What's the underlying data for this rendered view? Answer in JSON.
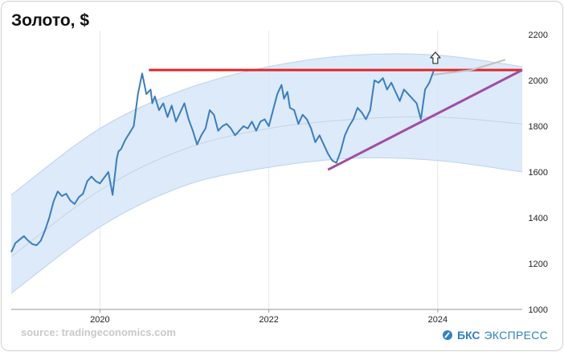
{
  "chart_data": {
    "type": "line",
    "title": "Золото, $",
    "xlabel": "",
    "ylabel": "",
    "xlim": [
      2018.95,
      2025.0
    ],
    "ylim": [
      1000,
      2200
    ],
    "yticks": [
      1000,
      1200,
      1400,
      1600,
      1800,
      2000,
      2200
    ],
    "xticks": [
      2020,
      2022,
      2024
    ],
    "ytick_labels": [
      "1000",
      "1200",
      "1400",
      "1600",
      "1800",
      "2000",
      "2200"
    ],
    "xtick_labels": [
      "2020",
      "2022",
      "2024"
    ],
    "grid": "vertical",
    "colors": {
      "price": "#3b7dbf",
      "channel_fill": "#d6e6f8",
      "resistance": "#e0262a",
      "support": "#a04ca6",
      "forecast": "#bfbfbf",
      "trend_center": "#c6d3e2"
    },
    "series": [
      {
        "name": "",
        "x": [
          2018.95,
          2019.0,
          2019.05,
          2019.1,
          2019.15,
          2019.2,
          2019.25,
          2019.3,
          2019.35,
          2019.4,
          2019.45,
          2019.5,
          2019.55,
          2019.6,
          2019.65,
          2019.7,
          2019.75,
          2019.8,
          2019.85,
          2019.9,
          2019.95,
          2020.0,
          2020.05,
          2020.1,
          2020.15,
          2020.2,
          2020.22,
          2020.25,
          2020.3,
          2020.35,
          2020.4,
          2020.45,
          2020.5,
          2020.55,
          2020.6,
          2020.62,
          2020.65,
          2020.7,
          2020.75,
          2020.8,
          2020.85,
          2020.9,
          2020.95,
          2021.0,
          2021.05,
          2021.1,
          2021.15,
          2021.2,
          2021.25,
          2021.3,
          2021.35,
          2021.4,
          2021.45,
          2021.5,
          2021.55,
          2021.6,
          2021.65,
          2021.7,
          2021.75,
          2021.8,
          2021.85,
          2021.9,
          2021.95,
          2022.0,
          2022.05,
          2022.1,
          2022.15,
          2022.18,
          2022.22,
          2022.25,
          2022.3,
          2022.35,
          2022.4,
          2022.45,
          2022.5,
          2022.55,
          2022.6,
          2022.65,
          2022.7,
          2022.75,
          2022.8,
          2022.85,
          2022.9,
          2022.95,
          2023.0,
          2023.05,
          2023.1,
          2023.15,
          2023.2,
          2023.25,
          2023.3,
          2023.35,
          2023.4,
          2023.45,
          2023.5,
          2023.55,
          2023.6,
          2023.65,
          2023.7,
          2023.75,
          2023.8,
          2023.85,
          2023.9,
          2023.95
        ],
        "y": [
          1250,
          1290,
          1305,
          1320,
          1300,
          1285,
          1280,
          1300,
          1345,
          1400,
          1470,
          1515,
          1495,
          1505,
          1475,
          1460,
          1490,
          1505,
          1560,
          1580,
          1560,
          1550,
          1575,
          1600,
          1500,
          1660,
          1690,
          1700,
          1740,
          1770,
          1800,
          1940,
          2030,
          1940,
          1960,
          1900,
          1930,
          1870,
          1900,
          1840,
          1890,
          1820,
          1860,
          1900,
          1830,
          1780,
          1720,
          1760,
          1790,
          1870,
          1850,
          1780,
          1800,
          1810,
          1790,
          1760,
          1780,
          1800,
          1790,
          1820,
          1780,
          1820,
          1830,
          1800,
          1870,
          1940,
          1980,
          1920,
          1950,
          1880,
          1870,
          1810,
          1850,
          1830,
          1790,
          1730,
          1760,
          1720,
          1680,
          1650,
          1640,
          1690,
          1760,
          1800,
          1830,
          1880,
          1860,
          1830,
          1870,
          2000,
          1990,
          2010,
          1960,
          1990,
          1950,
          1910,
          1960,
          1940,
          1920,
          1900,
          1830,
          1960,
          1990,
          2040
        ]
      }
    ],
    "channel": {
      "center": [
        [
          2018.95,
          1230
        ],
        [
          2020.0,
          1520
        ],
        [
          2021.0,
          1700
        ],
        [
          2022.0,
          1790
        ],
        [
          2023.0,
          1830
        ],
        [
          2024.0,
          1840
        ],
        [
          2025.0,
          1810
        ]
      ],
      "upper": [
        [
          2018.95,
          1500
        ],
        [
          2020.0,
          1790
        ],
        [
          2021.0,
          1960
        ],
        [
          2022.0,
          2060
        ],
        [
          2023.0,
          2110
        ],
        [
          2024.0,
          2110
        ],
        [
          2025.0,
          2060
        ]
      ],
      "lower": [
        [
          2018.95,
          1070
        ],
        [
          2020.0,
          1360
        ],
        [
          2021.0,
          1540
        ],
        [
          2022.0,
          1620
        ],
        [
          2023.0,
          1660
        ],
        [
          2024.0,
          1650
        ],
        [
          2025.0,
          1600
        ]
      ]
    },
    "resistance_line": {
      "x": [
        2020.58,
        2025.0
      ],
      "y": [
        2045,
        2045
      ]
    },
    "support_line": {
      "x": [
        2022.7,
        2025.0
      ],
      "y": [
        1610,
        2045
      ]
    },
    "forecast_line": {
      "x": [
        2023.95,
        2024.4,
        2024.8
      ],
      "y": [
        2025,
        2045,
        2090
      ]
    },
    "annotation_icon": "up-arrow-icon"
  },
  "footer": {
    "source": "source: tradingeconomics.com",
    "brand_name": "БКС",
    "brand_rest": "ЭКСПРЕСС",
    "brand_icon": "bks-logo-icon"
  }
}
